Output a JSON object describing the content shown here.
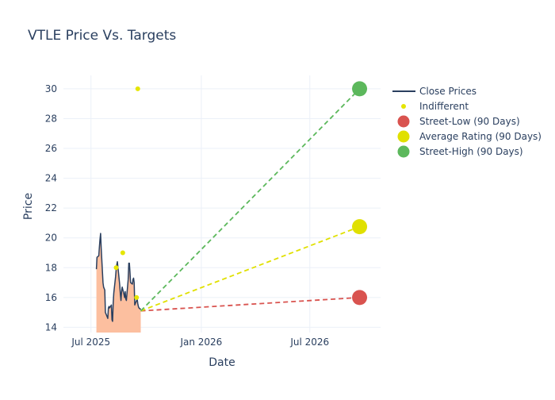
{
  "chart_data": {
    "type": "line",
    "title": "VTLE Price Vs. Targets",
    "xlabel": "Date",
    "ylabel": "Price",
    "xlim": [
      "2025-05-16",
      "2026-10-27"
    ],
    "ylim": [
      13.65,
      30.9
    ],
    "x_ticks": [
      {
        "date": "2025-07-01",
        "label": "Jul 2025"
      },
      {
        "date": "2026-01-01",
        "label": "Jan 2026"
      },
      {
        "date": "2026-07-01",
        "label": "Jul 2026"
      }
    ],
    "y_ticks": [
      14,
      16,
      18,
      20,
      22,
      24,
      26,
      28,
      30
    ],
    "grid": true,
    "legend_position": "right",
    "legend": [
      "Close Prices",
      "Indifferent",
      "Street-Low (90 Days)",
      "Average Rating (90 Days)",
      "Street-High (90 Days)"
    ],
    "close_prices": {
      "name": "Close Prices",
      "color": "#2a3f5f",
      "fill_color": "#fcbf9f",
      "points": [
        [
          "2025-07-10",
          17.9
        ],
        [
          "2025-07-11",
          18.7
        ],
        [
          "2025-07-14",
          18.8
        ],
        [
          "2025-07-15",
          19.4
        ],
        [
          "2025-07-16",
          19.9
        ],
        [
          "2025-07-17",
          20.3
        ],
        [
          "2025-07-18",
          19.3
        ],
        [
          "2025-07-21",
          17.0
        ],
        [
          "2025-07-22",
          16.7
        ],
        [
          "2025-07-23",
          16.6
        ],
        [
          "2025-07-24",
          16.5
        ],
        [
          "2025-07-25",
          15.0
        ],
        [
          "2025-07-28",
          14.7
        ],
        [
          "2025-07-29",
          14.6
        ],
        [
          "2025-07-30",
          15.3
        ],
        [
          "2025-07-31",
          15.4
        ],
        [
          "2025-08-01",
          15.3
        ],
        [
          "2025-08-04",
          15.5
        ],
        [
          "2025-08-05",
          14.5
        ],
        [
          "2025-08-06",
          14.4
        ],
        [
          "2025-08-07",
          15.6
        ],
        [
          "2025-08-08",
          16.3
        ],
        [
          "2025-08-11",
          17.4
        ],
        [
          "2025-08-12",
          17.9
        ],
        [
          "2025-08-13",
          18.2
        ],
        [
          "2025-08-14",
          18.4
        ],
        [
          "2025-08-15",
          18.0
        ],
        [
          "2025-08-18",
          16.8
        ],
        [
          "2025-08-19",
          16.2
        ],
        [
          "2025-08-20",
          15.8
        ],
        [
          "2025-08-21",
          16.4
        ],
        [
          "2025-08-22",
          16.7
        ],
        [
          "2025-08-25",
          16.2
        ],
        [
          "2025-08-26",
          16.0
        ],
        [
          "2025-08-27",
          16.4
        ],
        [
          "2025-08-28",
          15.9
        ],
        [
          "2025-08-29",
          15.8
        ],
        [
          "2025-09-01",
          17.2
        ],
        [
          "2025-09-02",
          18.3
        ],
        [
          "2025-09-03",
          18.3
        ],
        [
          "2025-09-04",
          17.7
        ],
        [
          "2025-09-05",
          17.0
        ],
        [
          "2025-09-08",
          16.9
        ],
        [
          "2025-09-09",
          17.2
        ],
        [
          "2025-09-10",
          17.3
        ],
        [
          "2025-09-11",
          17.0
        ],
        [
          "2025-09-12",
          15.5
        ],
        [
          "2025-09-15",
          15.8
        ],
        [
          "2025-09-16",
          15.9
        ],
        [
          "2025-09-17",
          15.6
        ],
        [
          "2025-09-18",
          15.4
        ],
        [
          "2025-09-19",
          15.3
        ],
        [
          "2025-09-22",
          15.2
        ]
      ]
    },
    "ratings": {
      "name": "Indifferent",
      "color": "#e5e500",
      "points": [
        [
          "2025-08-12",
          18.0
        ],
        [
          "2025-08-23",
          19.0
        ],
        [
          "2025-09-17",
          30.0
        ],
        [
          "2025-09-15",
          16.0
        ]
      ]
    },
    "targets": {
      "start": [
        "2025-09-22",
        15.1
      ],
      "end_date": "2026-09-22",
      "series": [
        {
          "name": "Street-Low (90 Days)",
          "value": 16.0,
          "color": "#d9534f"
        },
        {
          "name": "Average Rating (90 Days)",
          "value": 20.75,
          "color": "#e0e000"
        },
        {
          "name": "Street-High (90 Days)",
          "value": 30.0,
          "color": "#5cb85c"
        }
      ]
    }
  }
}
